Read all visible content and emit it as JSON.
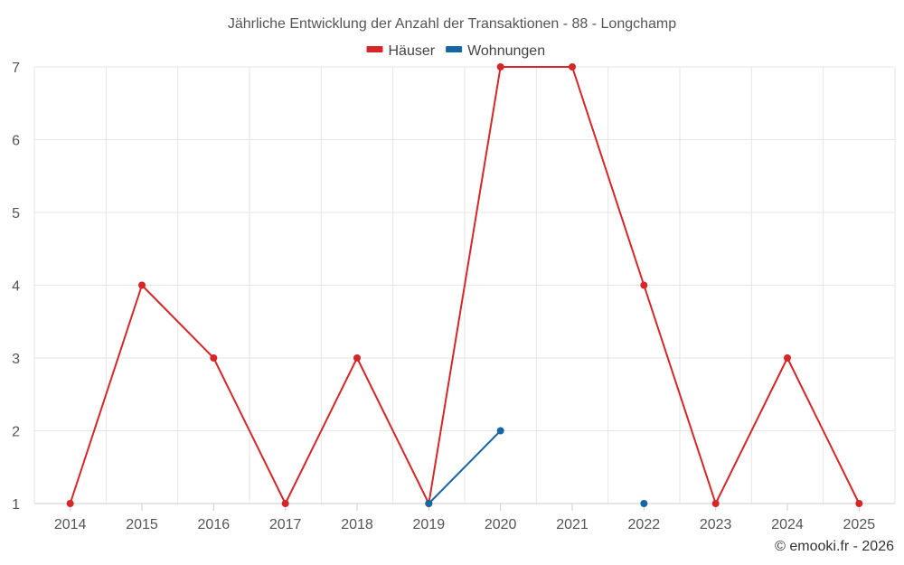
{
  "chart_data": {
    "type": "line",
    "title": "Jährliche Entwicklung der Anzahl der Transaktionen - 88 - Longchamp",
    "categories": [
      "2014",
      "2015",
      "2016",
      "2017",
      "2018",
      "2019",
      "2020",
      "2021",
      "2022",
      "2023",
      "2024",
      "2025"
    ],
    "series": [
      {
        "name": "Häuser",
        "color": "#d62728",
        "values": [
          1,
          4,
          3,
          1,
          3,
          1,
          7,
          7,
          4,
          1,
          3,
          1
        ]
      },
      {
        "name": "Wohnungen",
        "color": "#1666a3",
        "values": [
          null,
          null,
          null,
          null,
          null,
          1,
          2,
          null,
          1,
          null,
          null,
          null
        ]
      }
    ],
    "ylim": [
      1,
      7
    ],
    "yticks": [
      1,
      2,
      3,
      4,
      5,
      6,
      7
    ],
    "xlabel": "",
    "ylabel": "",
    "grid": true,
    "legend": "top-center",
    "credit": "© emooki.fr - 2026"
  }
}
